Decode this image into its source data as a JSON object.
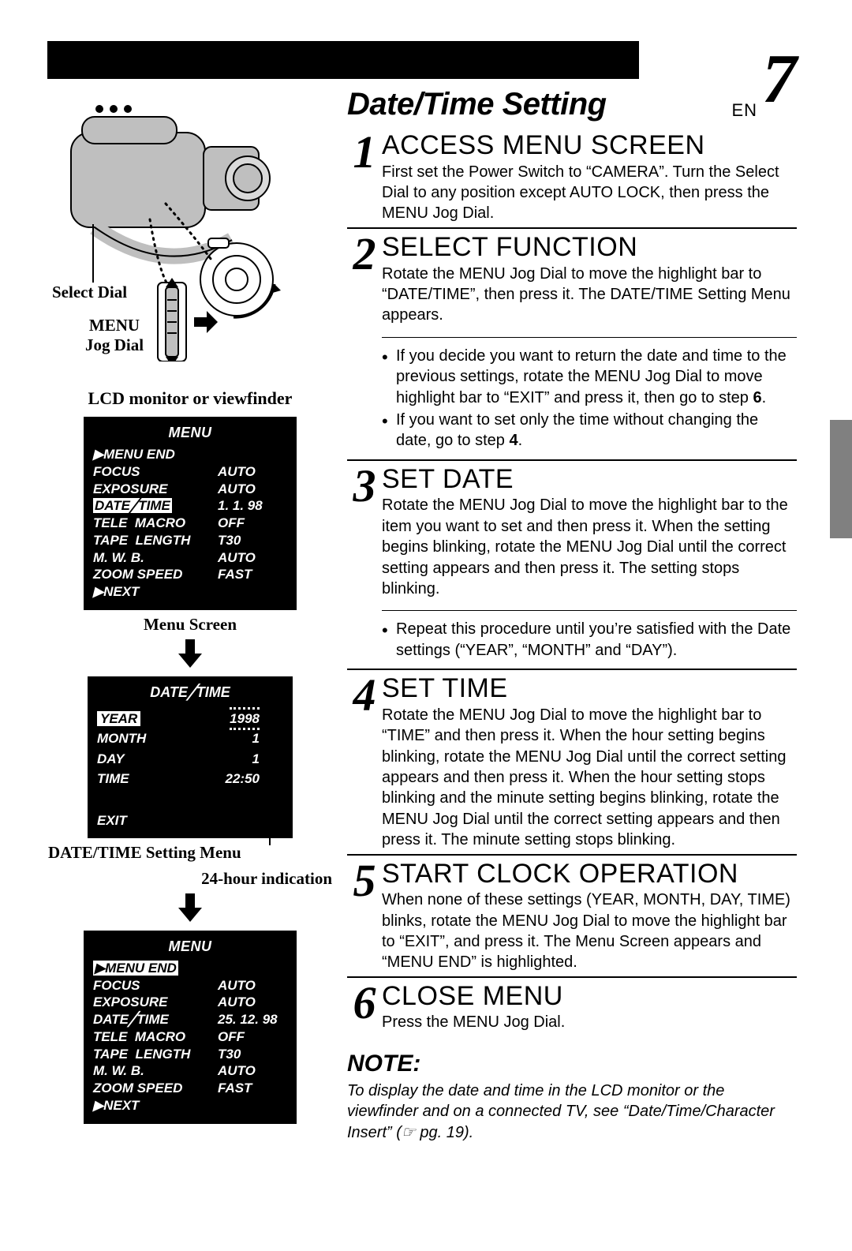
{
  "page": {
    "lang": "EN",
    "number": "7"
  },
  "title": "Date/Time Setting",
  "left": {
    "select_dial": "Select Dial",
    "menu_jog_1": "MENU",
    "menu_jog_2": "Jog Dial",
    "lcd_title": "LCD monitor or viewfinder",
    "menu1": {
      "header": "MENU",
      "rows": [
        {
          "k": "▶MENU END",
          "v": ""
        },
        {
          "k": "FOCUS",
          "v": "AUTO"
        },
        {
          "k": "EXPOSURE",
          "v": "AUTO"
        },
        {
          "k": "DATE╱TIME",
          "v": "1. 1. 98",
          "hl": true
        },
        {
          "k": "TELE  MACRO",
          "v": "OFF"
        },
        {
          "k": "TAPE  LENGTH",
          "v": "T30"
        },
        {
          "k": "M. W. B.",
          "v": "AUTO"
        },
        {
          "k": "ZOOM SPEED",
          "v": "FAST"
        },
        {
          "k": "▶NEXT",
          "v": ""
        }
      ],
      "caption": "Menu Screen"
    },
    "dt": {
      "header": "DATE╱TIME",
      "rows": [
        {
          "k": "YEAR",
          "v": "1998",
          "hl": true,
          "blink": true
        },
        {
          "k": "MONTH",
          "v": "1"
        },
        {
          "k": "DAY",
          "v": "1"
        },
        {
          "k": "TIME",
          "v": "22:50"
        }
      ],
      "exit": "EXIT",
      "caption": "DATE/TIME Setting Menu",
      "callout": "24-hour indication"
    },
    "menu2": {
      "header": "MENU",
      "rows": [
        {
          "k": "▶MENU END",
          "v": "",
          "hl": true
        },
        {
          "k": "FOCUS",
          "v": "AUTO"
        },
        {
          "k": "EXPOSURE",
          "v": "AUTO"
        },
        {
          "k": "DATE╱TIME",
          "v": "25. 12. 98"
        },
        {
          "k": "TELE  MACRO",
          "v": "OFF"
        },
        {
          "k": "TAPE  LENGTH",
          "v": "T30"
        },
        {
          "k": "M. W. B.",
          "v": "AUTO"
        },
        {
          "k": "ZOOM SPEED",
          "v": "FAST"
        },
        {
          "k": "▶NEXT",
          "v": ""
        }
      ]
    }
  },
  "steps": [
    {
      "n": "1",
      "h": "ACCESS MENU SCREEN",
      "t": "First set the Power Switch to “CAMERA”. Turn the Select Dial to any position except AUTO LOCK, then press the MENU Jog Dial."
    },
    {
      "n": "2",
      "h": "SELECT FUNCTION",
      "t": "Rotate the MENU Jog Dial to move the highlight bar to “DATE/TIME”, then press it. The DATE/TIME Setting Menu appears.",
      "b": [
        "If you decide you want to return the date and time to the previous settings, rotate the MENU Jog Dial to move highlight bar to “EXIT” and press it, then go to step 6.",
        "If you want to set only the time without changing the date, go to step 4."
      ]
    },
    {
      "n": "3",
      "h": "SET DATE",
      "t": "Rotate the MENU Jog Dial to move the highlight bar to the item you want to set and then press it. When the setting begins blinking, rotate the MENU Jog Dial until the correct setting appears and then press it. The setting stops blinking.",
      "b": [
        "Repeat this procedure until you’re satisfied with the Date settings (“YEAR”, “MONTH” and “DAY”)."
      ]
    },
    {
      "n": "4",
      "h": "SET TIME",
      "t": "Rotate the MENU Jog Dial to move the highlight bar to “TIME” and then press it. When the hour setting begins blinking, rotate the MENU Jog Dial until the correct setting appears and then press it. When the hour setting stops blinking and the minute setting begins blinking, rotate the MENU Jog Dial until the correct setting appears and then press it. The minute setting stops blinking."
    },
    {
      "n": "5",
      "h": "START CLOCK OPERATION",
      "t": "When none of these settings (YEAR, MONTH, DAY, TIME) blinks, rotate the MENU Jog Dial to move the highlight bar to “EXIT”, and press it. The Menu Screen appears and “MENU END” is highlighted."
    },
    {
      "n": "6",
      "h": "CLOSE MENU",
      "t": "Press the MENU Jog Dial."
    }
  ],
  "note": {
    "h": "NOTE:",
    "t": "To display the date and time in the LCD monitor or the viewfinder and on a connected TV, see “Date/Time/Character Insert” (☞ pg. 19)."
  }
}
